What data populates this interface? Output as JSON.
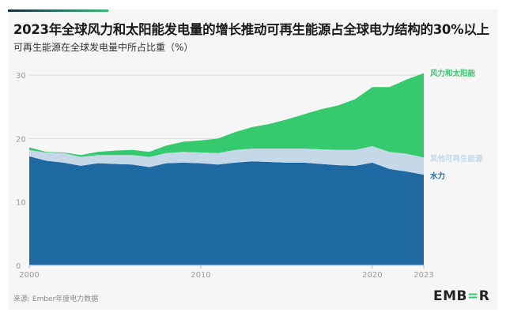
{
  "title": "2023年全球风力和太阳能发电量的增长推动可再生能源占全球电力结构的30%以上",
  "subtitle": "可再生能源在全球发电量中所占比重（%）",
  "source": "来源: Ember年度电力数据",
  "logo": "EMBER",
  "chart_data": {
    "type": "area",
    "stacked": true,
    "title": "2023年全球风力和太阳能发电量的增长推动可再生能源占全球电力结构的30%以上",
    "subtitle": "可再生能源在全球发电量中所占比重（%）",
    "x": [
      2000,
      2001,
      2002,
      2003,
      2004,
      2005,
      2006,
      2007,
      2008,
      2009,
      2010,
      2011,
      2012,
      2013,
      2014,
      2015,
      2016,
      2017,
      2018,
      2019,
      2020,
      2021,
      2022,
      2023
    ],
    "x_ticks": [
      "2000",
      "2010",
      "2020",
      "2023"
    ],
    "y_ticks": [
      "0",
      "10",
      "20",
      "30"
    ],
    "ylim": [
      0,
      30
    ],
    "grid": "horizontal",
    "legend": "right (inline labels)",
    "series": [
      {
        "name": "水力",
        "color": "#1f69a3",
        "values": [
          17.2,
          16.5,
          16.2,
          15.7,
          16.1,
          16.0,
          15.9,
          15.5,
          16.1,
          16.2,
          16.1,
          15.9,
          16.2,
          16.4,
          16.3,
          16.2,
          16.2,
          16.0,
          15.8,
          15.7,
          16.2,
          15.2,
          14.8,
          14.3
        ]
      },
      {
        "name": "其他可再生能源",
        "color": "#c5d8e8",
        "values": [
          1.0,
          1.3,
          1.5,
          1.4,
          1.3,
          1.4,
          1.5,
          1.6,
          1.6,
          1.7,
          1.7,
          1.8,
          2.0,
          2.0,
          2.1,
          2.2,
          2.2,
          2.3,
          2.4,
          2.5,
          2.6,
          2.7,
          2.8,
          2.7
        ]
      },
      {
        "name": "风力和太阳能",
        "color": "#34ca6d",
        "values": [
          0.4,
          0.1,
          0.1,
          0.3,
          0.5,
          0.7,
          0.8,
          0.8,
          1.2,
          1.6,
          1.9,
          2.3,
          2.8,
          3.4,
          3.9,
          4.6,
          5.4,
          6.3,
          7.0,
          8.0,
          9.3,
          10.2,
          11.7,
          13.3
        ]
      }
    ]
  }
}
